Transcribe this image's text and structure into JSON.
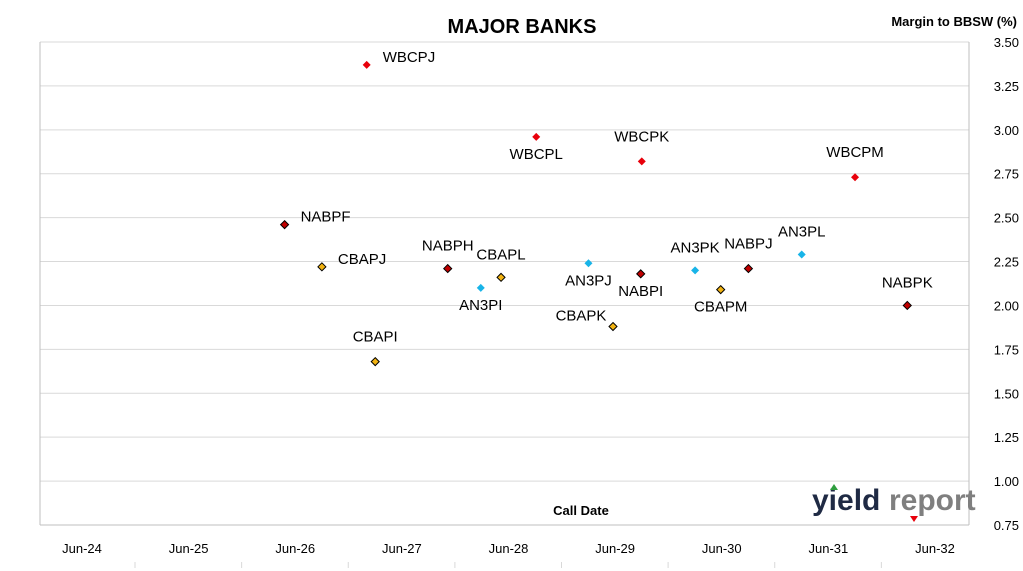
{
  "chart_data": {
    "type": "scatter",
    "title": "MAJOR BANKS",
    "ylabel": "Margin to BBSW (%)",
    "xlabel": "Call Date",
    "ylim": [
      0.75,
      3.5
    ],
    "y_ticks": [
      "0.75",
      "1.00",
      "1.25",
      "1.50",
      "1.75",
      "2.00",
      "2.25",
      "2.50",
      "2.75",
      "3.00",
      "3.25",
      "3.50"
    ],
    "x_ticks": [
      "Jun-24",
      "Jun-25",
      "Jun-26",
      "Jun-27",
      "Jun-28",
      "Jun-29",
      "Jun-30",
      "Jun-31",
      "Jun-32"
    ],
    "grid": true,
    "points": [
      {
        "label": "WBCPJ",
        "x": 2.67,
        "y": 3.37,
        "color": "#e8000b",
        "border": false
      },
      {
        "label": "WBCPL",
        "x": 4.26,
        "y": 2.96,
        "color": "#e8000b",
        "border": false
      },
      {
        "label": "WBCPK",
        "x": 5.25,
        "y": 2.82,
        "color": "#e8000b",
        "border": false
      },
      {
        "label": "WBCPM",
        "x": 7.25,
        "y": 2.73,
        "color": "#e8000b",
        "border": false
      },
      {
        "label": "NABPF",
        "x": 1.9,
        "y": 2.46,
        "color": "#c00000",
        "border": true
      },
      {
        "label": "NABPH",
        "x": 3.43,
        "y": 2.21,
        "color": "#c00000",
        "border": true
      },
      {
        "label": "NABPI",
        "x": 5.24,
        "y": 2.18,
        "color": "#c00000",
        "border": true
      },
      {
        "label": "NABPJ",
        "x": 6.25,
        "y": 2.21,
        "color": "#c00000",
        "border": true
      },
      {
        "label": "NABPK",
        "x": 7.74,
        "y": 2.0,
        "color": "#c00000",
        "border": true
      },
      {
        "label": "CBAPJ",
        "x": 2.25,
        "y": 2.22,
        "color": "#f2b312",
        "border": true
      },
      {
        "label": "CBAPI",
        "x": 2.75,
        "y": 1.68,
        "color": "#f2b312",
        "border": true
      },
      {
        "label": "CBAPL",
        "x": 3.93,
        "y": 2.16,
        "color": "#f2b312",
        "border": true
      },
      {
        "label": "CBAPK",
        "x": 4.98,
        "y": 1.88,
        "color": "#f2b312",
        "border": true
      },
      {
        "label": "CBAPM",
        "x": 5.99,
        "y": 2.09,
        "color": "#f2b312",
        "border": true
      },
      {
        "label": "AN3PI",
        "x": 3.74,
        "y": 2.1,
        "color": "#18b4e8",
        "border": false
      },
      {
        "label": "AN3PJ",
        "x": 4.75,
        "y": 2.24,
        "color": "#18b4e8",
        "border": false
      },
      {
        "label": "AN3PK",
        "x": 5.75,
        "y": 2.2,
        "color": "#18b4e8",
        "border": false
      },
      {
        "label": "AN3PL",
        "x": 6.75,
        "y": 2.29,
        "color": "#18b4e8",
        "border": false
      }
    ]
  },
  "logo": {
    "part1": "yield",
    "part2": "report"
  }
}
